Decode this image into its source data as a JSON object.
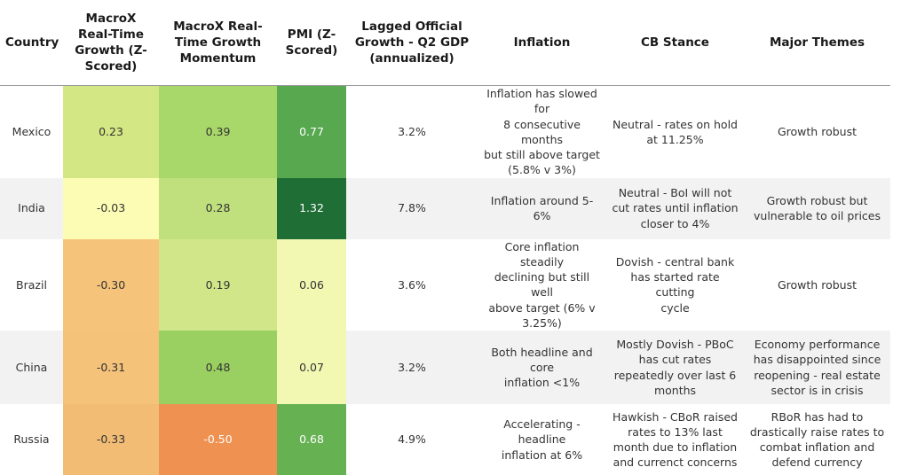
{
  "chart_data": {
    "type": "table",
    "columns": [
      "Country",
      "MacroX Real-Time Growth (Z-Scored)",
      "MacroX Real-Time Growth Momentum",
      "PMI (Z-Scored)",
      "Lagged Official Growth - Q2 GDP (annualized)",
      "Inflation",
      "CB Stance",
      "Major Themes"
    ],
    "header_lines": [
      [
        "Country"
      ],
      [
        "MacroX",
        "Real-Time",
        "Growth (Z-",
        "Scored)"
      ],
      [
        "MacroX Real-",
        "Time Growth",
        "Momentum"
      ],
      [
        "PMI (Z-",
        "Scored)"
      ],
      [
        "Lagged Official",
        "Growth - Q2 GDP",
        "(annualized)"
      ],
      [
        "Inflation"
      ],
      [
        "CB Stance"
      ],
      [
        "Major Themes"
      ]
    ],
    "rows": [
      {
        "country": "Mexico",
        "growth": "0.23",
        "momentum": "0.39",
        "pmi": "0.77",
        "gdp": "3.2%",
        "inflation": [
          "Inflation has slowed for",
          "8 consecutive months",
          "but still above target",
          "(5.8% v 3%)"
        ],
        "cb": [
          "Neutral - rates on hold",
          "at 11.25%"
        ],
        "themes": [
          "Growth robust"
        ]
      },
      {
        "country": "India",
        "growth": "-0.03",
        "momentum": "0.28",
        "pmi": "1.32",
        "gdp": "7.8%",
        "inflation": [
          "Inflation around 5-6%"
        ],
        "cb": [
          "Neutral - BoI will not",
          "cut rates until inflation",
          "closer to 4%"
        ],
        "themes": [
          "Growth robust but",
          "vulnerable to oil prices"
        ]
      },
      {
        "country": "Brazil",
        "growth": "-0.30",
        "momentum": "0.19",
        "pmi": "0.06",
        "gdp": "3.6%",
        "inflation": [
          "Core inflation steadily",
          "declining but still well",
          "above target (6% v",
          "3.25%)"
        ],
        "cb": [
          "Dovish - central bank",
          "has started rate cutting",
          "cycle"
        ],
        "themes": [
          "Growth robust"
        ]
      },
      {
        "country": "China",
        "growth": "-0.31",
        "momentum": "0.48",
        "pmi": "0.07",
        "gdp": "3.2%",
        "inflation": [
          "Both headline and core",
          "inflation <1%"
        ],
        "cb": [
          "Mostly Dovish - PBoC",
          "has cut rates",
          "repeatedly over last 6",
          "months"
        ],
        "themes": [
          "Economy performance",
          "has disappointed since",
          "reopening - real estate",
          "sector is in crisis"
        ]
      },
      {
        "country": "Russia",
        "growth": "-0.33",
        "momentum": "-0.50",
        "pmi": "0.68",
        "gdp": "4.9%",
        "inflation": [
          "Accelerating - headline",
          "inflation at 6%"
        ],
        "cb": [
          "Hawkish - CBoR raised",
          "rates to 13% last",
          "month due to inflation",
          "and currenct concerns"
        ],
        "themes": [
          "RBoR has had to",
          "drastically raise rates to",
          "combat inflation and",
          "defend currency"
        ]
      }
    ],
    "heat_colors": {
      "growth": [
        "#d3e884",
        "#fdfcb4",
        "#f6c37a",
        "#f5c27a",
        "#f2bc75"
      ],
      "momentum": [
        "#a9d86a",
        "#c0e07e",
        "#d0e688",
        "#9ad062",
        "#ef9150"
      ],
      "pmi": [
        "#57a84f",
        "#1e6e35",
        "#f2f8b2",
        "#f2f8b2",
        "#66b152"
      ]
    },
    "heat_text_colors": {
      "growth": [
        "#333333",
        "#333333",
        "#333333",
        "#333333",
        "#333333"
      ],
      "momentum": [
        "#333333",
        "#333333",
        "#333333",
        "#333333",
        "#ffffff"
      ],
      "pmi": [
        "#ffffff",
        "#ffffff",
        "#333333",
        "#333333",
        "#ffffff"
      ]
    }
  }
}
